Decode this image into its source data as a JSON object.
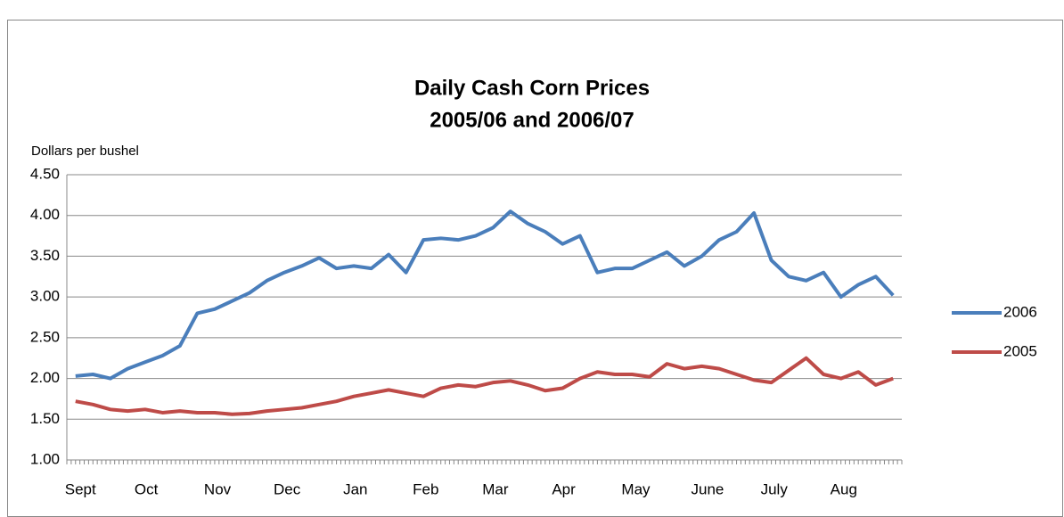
{
  "chart_data": {
    "type": "line",
    "title": "Daily Cash Corn Prices",
    "subtitle": "2005/06 and 2006/07",
    "y_label": "Dollars per bushel",
    "categories": [
      "Sept",
      null,
      null,
      null,
      "Oct",
      null,
      null,
      null,
      "Nov",
      null,
      null,
      null,
      "Dec",
      null,
      null,
      null,
      "Jan",
      null,
      null,
      null,
      "Feb",
      null,
      null,
      null,
      "Mar",
      null,
      null,
      null,
      "Apr",
      null,
      null,
      null,
      "May",
      null,
      null,
      null,
      "June",
      null,
      null,
      null,
      "July",
      null,
      null,
      null,
      "Aug",
      null,
      null,
      null
    ],
    "series": [
      {
        "name": "2006",
        "color": "#4a7ebb",
        "values": [
          2.03,
          2.05,
          2.0,
          2.12,
          2.2,
          2.28,
          2.4,
          2.8,
          2.85,
          2.95,
          3.05,
          3.2,
          3.3,
          3.38,
          3.48,
          3.35,
          3.38,
          3.35,
          3.52,
          3.3,
          3.7,
          3.72,
          3.7,
          3.75,
          3.85,
          4.05,
          3.9,
          3.8,
          3.65,
          3.75,
          3.3,
          3.35,
          3.35,
          3.45,
          3.55,
          3.38,
          3.5,
          3.7,
          3.8,
          4.03,
          3.45,
          3.25,
          3.2,
          3.3,
          3.0,
          3.15,
          3.25,
          3.02
        ]
      },
      {
        "name": "2005",
        "color": "#be4b48",
        "values": [
          1.72,
          1.68,
          1.62,
          1.6,
          1.62,
          1.58,
          1.6,
          1.58,
          1.58,
          1.56,
          1.57,
          1.6,
          1.62,
          1.64,
          1.68,
          1.72,
          1.78,
          1.82,
          1.86,
          1.82,
          1.78,
          1.88,
          1.92,
          1.9,
          1.95,
          1.97,
          1.92,
          1.85,
          1.88,
          2.0,
          2.08,
          2.05,
          2.05,
          2.02,
          2.18,
          2.12,
          2.15,
          2.12,
          2.05,
          1.98,
          1.95,
          2.1,
          2.25,
          2.05,
          2.0,
          2.08,
          1.92,
          2.0
        ]
      }
    ],
    "ylim": [
      1,
      4.5
    ],
    "yticks": [
      {
        "value": 1,
        "label": "1.00"
      },
      {
        "value": 1.5,
        "label": "1.50"
      },
      {
        "value": 2,
        "label": "2.00"
      },
      {
        "value": 2.5,
        "label": "2.50"
      },
      {
        "value": 3,
        "label": "3.00"
      },
      {
        "value": 3.5,
        "label": "3.50"
      },
      {
        "value": 4,
        "label": "4.00"
      },
      {
        "value": 4.5,
        "label": "4.50"
      }
    ],
    "grid": true,
    "legend": "right"
  }
}
